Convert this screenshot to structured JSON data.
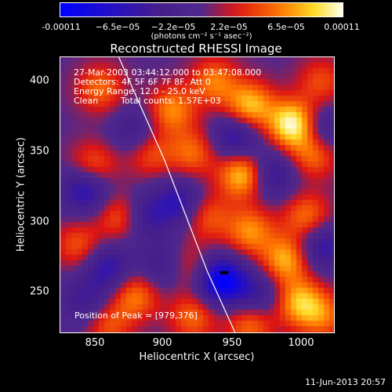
{
  "colorbar": {
    "ticks": [
      "-0.00011",
      "−6.5e−05",
      "−2.2e−05",
      "2.2e−05",
      "6.5e−05",
      "0.00011"
    ],
    "unit": "(photons cm⁻² s⁻¹ asec⁻²)"
  },
  "colors": {
    "low": "#0000ff",
    "mid": "#4b2a86",
    "high": "#ff3000",
    "peak": "#ffff80"
  },
  "chart_data": {
    "type": "heatmap",
    "title": "Reconstructed RHESSI Image",
    "xlabel": "Heliocentric X (arcsec)",
    "ylabel": "Heliocentric Y (arcsec)",
    "xlim": [
      827,
      1020
    ],
    "ylim": [
      218,
      412
    ],
    "xticks": [
      "850",
      "900",
      "950",
      "1000"
    ],
    "yticks": [
      "250",
      "300",
      "350",
      "400"
    ],
    "annotations": [
      "27-Mar-2003 03:44:12.000 to 03:47:08.000",
      "Detectors: 4F 5F 6F 7F 8F, Att 0",
      "Energy Range: 12.0 - 25.0 keV",
      "Clean",
      "Total counts: 1.57E+03"
    ],
    "peak_label": "Position of Peak = [979,376]",
    "peak": [
      979,
      376
    ],
    "limb_points": [
      [
        868,
        412
      ],
      [
        900,
        340
      ],
      [
        930,
        262
      ],
      [
        950,
        218
      ]
    ],
    "blobs": [
      {
        "x": 990,
        "y": 365,
        "v": 1.0
      },
      {
        "x": 960,
        "y": 378,
        "v": 0.75
      },
      {
        "x": 955,
        "y": 330,
        "v": 0.85
      },
      {
        "x": 1005,
        "y": 345,
        "v": 0.6
      },
      {
        "x": 935,
        "y": 395,
        "v": 0.55
      },
      {
        "x": 905,
        "y": 375,
        "v": 0.6
      },
      {
        "x": 890,
        "y": 345,
        "v": 0.45
      },
      {
        "x": 920,
        "y": 345,
        "v": 0.5
      },
      {
        "x": 850,
        "y": 335,
        "v": 0.55
      },
      {
        "x": 870,
        "y": 300,
        "v": 0.55
      },
      {
        "x": 840,
        "y": 280,
        "v": 0.45
      },
      {
        "x": 930,
        "y": 300,
        "v": 0.45
      },
      {
        "x": 960,
        "y": 290,
        "v": 0.6
      },
      {
        "x": 985,
        "y": 270,
        "v": 0.7
      },
      {
        "x": 1000,
        "y": 300,
        "v": 0.55
      },
      {
        "x": 995,
        "y": 240,
        "v": 0.7
      },
      {
        "x": 960,
        "y": 225,
        "v": 0.55
      },
      {
        "x": 920,
        "y": 230,
        "v": 0.5
      },
      {
        "x": 880,
        "y": 245,
        "v": 0.55
      },
      {
        "x": 860,
        "y": 225,
        "v": 0.45
      },
      {
        "x": 915,
        "y": 265,
        "v": 0.4
      },
      {
        "x": 855,
        "y": 390,
        "v": 0.5
      },
      {
        "x": 1010,
        "y": 395,
        "v": 0.4
      },
      {
        "x": 1012,
        "y": 230,
        "v": 0.45
      },
      {
        "x": 845,
        "y": 320,
        "v": -0.7
      },
      {
        "x": 860,
        "y": 265,
        "v": -0.55
      },
      {
        "x": 885,
        "y": 300,
        "v": -0.5
      },
      {
        "x": 940,
        "y": 255,
        "v": -1.0
      },
      {
        "x": 910,
        "y": 310,
        "v": -0.55
      },
      {
        "x": 950,
        "y": 355,
        "v": -0.6
      },
      {
        "x": 975,
        "y": 330,
        "v": -0.55
      },
      {
        "x": 1010,
        "y": 280,
        "v": -0.55
      },
      {
        "x": 1010,
        "y": 360,
        "v": -0.5
      },
      {
        "x": 965,
        "y": 245,
        "v": -0.45
      },
      {
        "x": 880,
        "y": 360,
        "v": -0.4
      },
      {
        "x": 900,
        "y": 265,
        "v": -0.45
      },
      {
        "x": 845,
        "y": 240,
        "v": -0.4
      }
    ]
  },
  "footer": {
    "date": "11-Jun-2013 20:57"
  }
}
